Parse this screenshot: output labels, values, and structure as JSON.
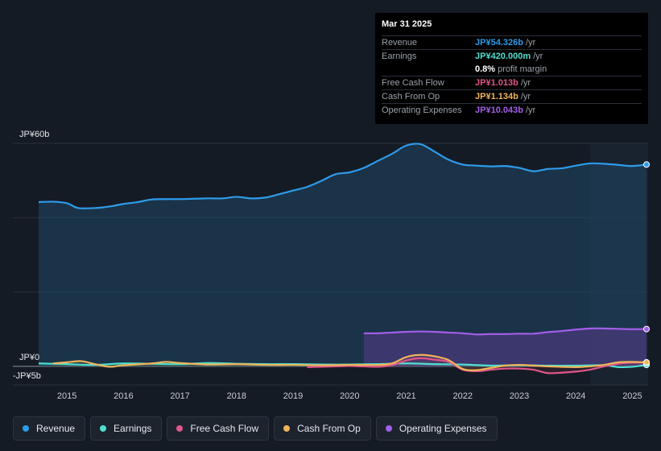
{
  "chart_data": {
    "type": "area",
    "ylabel_top": "JP¥60b",
    "ylabel_zero": "JP¥0",
    "ylabel_bottom": "-JP¥5b",
    "ylim": [
      -5,
      60
    ],
    "xlim": [
      2014.5,
      2025.25
    ],
    "x_ticks": [
      "2015",
      "2016",
      "2017",
      "2018",
      "2019",
      "2020",
      "2021",
      "2022",
      "2023",
      "2024",
      "2025"
    ],
    "x_tick_values": [
      2015,
      2016,
      2017,
      2018,
      2019,
      2020,
      2021,
      2022,
      2023,
      2024,
      2025
    ],
    "highlight_from": 2024.25,
    "series": [
      {
        "name": "Revenue",
        "color": "#2e9bea",
        "x": [
          2014.5,
          2014.75,
          2015.0,
          2015.2,
          2015.5,
          2015.75,
          2016.0,
          2016.25,
          2016.5,
          2016.75,
          2017.0,
          2017.25,
          2017.5,
          2017.75,
          2018.0,
          2018.25,
          2018.5,
          2018.75,
          2019.0,
          2019.25,
          2019.5,
          2019.75,
          2020.0,
          2020.25,
          2020.5,
          2020.75,
          2021.0,
          2021.25,
          2021.5,
          2021.75,
          2022.0,
          2022.25,
          2022.5,
          2022.75,
          2023.0,
          2023.25,
          2023.5,
          2023.75,
          2024.0,
          2024.25,
          2024.5,
          2024.75,
          2025.0,
          2025.25
        ],
        "values": [
          44.2,
          44.3,
          43.9,
          42.6,
          42.6,
          43.0,
          43.7,
          44.2,
          44.9,
          45.0,
          45.0,
          45.1,
          45.2,
          45.2,
          45.6,
          45.2,
          45.4,
          46.3,
          47.3,
          48.3,
          49.9,
          51.7,
          52.2,
          53.4,
          55.3,
          57.2,
          59.4,
          59.8,
          57.8,
          55.6,
          54.3,
          54.0,
          53.8,
          53.9,
          53.4,
          52.5,
          53.1,
          53.3,
          54.0,
          54.6,
          54.5,
          54.2,
          53.9,
          54.3
        ]
      },
      {
        "name": "Earnings",
        "color": "#4fdfcf",
        "x": [
          2014.5,
          2015.0,
          2015.5,
          2016.0,
          2016.5,
          2017.0,
          2017.5,
          2018.0,
          2018.5,
          2019.0,
          2019.5,
          2020.0,
          2020.5,
          2021.0,
          2021.5,
          2022.0,
          2022.5,
          2023.0,
          2023.5,
          2024.0,
          2024.5,
          2024.75,
          2025.0,
          2025.25
        ],
        "values": [
          0.8,
          0.6,
          0.4,
          0.8,
          0.7,
          0.6,
          0.9,
          0.7,
          0.6,
          0.6,
          0.5,
          0.5,
          0.6,
          0.8,
          0.6,
          0.5,
          0.2,
          0.3,
          0.2,
          0.2,
          0.3,
          -0.2,
          -0.1,
          0.4
        ]
      },
      {
        "name": "Free Cash Flow",
        "color": "#e0568a",
        "x": [
          2019.25,
          2019.5,
          2019.75,
          2020.0,
          2020.25,
          2020.5,
          2020.75,
          2021.0,
          2021.25,
          2021.5,
          2021.75,
          2022.0,
          2022.25,
          2022.5,
          2022.75,
          2023.0,
          2023.25,
          2023.5,
          2023.75,
          2024.0,
          2024.25,
          2024.5,
          2024.75,
          2025.0,
          2025.25
        ],
        "values": [
          -0.2,
          -0.1,
          0.0,
          0.1,
          0.0,
          -0.1,
          0.3,
          1.6,
          2.2,
          1.8,
          1.2,
          -0.9,
          -1.3,
          -0.9,
          -0.6,
          -0.6,
          -0.9,
          -1.8,
          -1.7,
          -1.4,
          -0.9,
          0.0,
          0.7,
          1.0,
          1.0
        ]
      },
      {
        "name": "Cash From Op",
        "color": "#f0b45a",
        "x": [
          2014.75,
          2015.0,
          2015.25,
          2015.5,
          2015.75,
          2016.0,
          2016.5,
          2016.75,
          2017.0,
          2017.5,
          2018.0,
          2018.5,
          2019.0,
          2019.5,
          2020.0,
          2020.5,
          2020.75,
          2021.0,
          2021.25,
          2021.5,
          2021.75,
          2022.0,
          2022.25,
          2022.5,
          2022.75,
          2023.0,
          2023.25,
          2023.5,
          2024.0,
          2024.25,
          2024.5,
          2024.75,
          2025.0,
          2025.25
        ],
        "values": [
          0.8,
          1.1,
          1.4,
          0.6,
          -0.1,
          0.3,
          0.8,
          1.2,
          0.9,
          0.5,
          0.6,
          0.4,
          0.4,
          0.3,
          0.4,
          0.4,
          0.8,
          2.5,
          3.1,
          2.7,
          1.7,
          -0.7,
          -1.0,
          -0.4,
          0.2,
          0.4,
          0.2,
          0.0,
          -0.2,
          0.0,
          0.4,
          1.1,
          1.2,
          1.1
        ]
      },
      {
        "name": "Operating Expenses",
        "color": "#a35ee8",
        "x": [
          2020.25,
          2020.5,
          2020.75,
          2021.0,
          2021.25,
          2021.5,
          2021.75,
          2022.0,
          2022.25,
          2022.5,
          2022.75,
          2023.0,
          2023.25,
          2023.5,
          2023.75,
          2024.0,
          2024.25,
          2024.5,
          2024.75,
          2025.0,
          2025.25
        ],
        "values": [
          8.9,
          8.9,
          9.1,
          9.3,
          9.4,
          9.3,
          9.1,
          8.9,
          8.6,
          8.7,
          8.7,
          8.8,
          8.8,
          9.2,
          9.5,
          9.9,
          10.2,
          10.2,
          10.1,
          10.0,
          10.04
        ]
      }
    ]
  },
  "tooltip": {
    "date": "Mar 31 2025",
    "rows": [
      {
        "label": "Revenue",
        "value": "JP¥54.326b",
        "unit": "/yr",
        "color": "#2e9bea"
      },
      {
        "label": "Earnings",
        "value": "JP¥420.000m",
        "unit": "/yr",
        "color": "#4fdfcf"
      },
      {
        "label": "",
        "value": "0.8%",
        "unit": "profit margin",
        "color": "#ffffff"
      },
      {
        "label": "Free Cash Flow",
        "value": "JP¥1.013b",
        "unit": "/yr",
        "color": "#e0568a"
      },
      {
        "label": "Cash From Op",
        "value": "JP¥1.134b",
        "unit": "/yr",
        "color": "#f0b45a"
      },
      {
        "label": "Operating Expenses",
        "value": "JP¥10.043b",
        "unit": "/yr",
        "color": "#a35ee8"
      }
    ]
  },
  "legend": [
    {
      "label": "Revenue",
      "color": "#2e9bea"
    },
    {
      "label": "Earnings",
      "color": "#4fdfcf"
    },
    {
      "label": "Free Cash Flow",
      "color": "#e0568a"
    },
    {
      "label": "Cash From Op",
      "color": "#f0b45a"
    },
    {
      "label": "Operating Expenses",
      "color": "#a35ee8"
    }
  ]
}
